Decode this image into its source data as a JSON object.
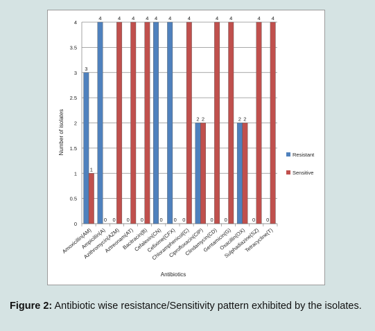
{
  "chart_data": {
    "type": "bar",
    "title": "",
    "xlabel": "Antibiotics",
    "ylabel": "Number of isolates",
    "ylim": [
      0,
      4
    ],
    "yticks": [
      "0",
      "0.5",
      "1",
      "1.5",
      "2",
      "2.5",
      "3",
      "3.5",
      "4"
    ],
    "grid": true,
    "legend_position": "right",
    "categories": [
      "Amoxicillin(AM)",
      "Ampicillin(A)",
      "Azithromycin(AZM)",
      "Aztreonam(AT)",
      "Bacitracin(B)",
      "Cefalexin(CN)",
      "Cefixime(CFX)",
      "Chloramphenicol(C)",
      "Ciprofloxacin(CIP)",
      "Clindamycin(CD)",
      "Gentamicin(G)",
      "Oxacillin(OX)",
      "Sulphadiazine(SZ)",
      "Tetracycline(T)"
    ],
    "series": [
      {
        "name": "Resistant",
        "color": "#4f81bd",
        "values": [
          3,
          4,
          0,
          0,
          0,
          4,
          4,
          0,
          2,
          0,
          0,
          2,
          0,
          0
        ]
      },
      {
        "name": "Sensitive",
        "color": "#c0504d",
        "values": [
          1,
          0,
          4,
          4,
          4,
          0,
          0,
          4,
          2,
          4,
          4,
          2,
          4,
          4
        ]
      }
    ]
  },
  "caption": {
    "label": "Figure 2:",
    "text": " Antibiotic wise resistance/Sensitivity pattern exhibited by the isolates."
  }
}
